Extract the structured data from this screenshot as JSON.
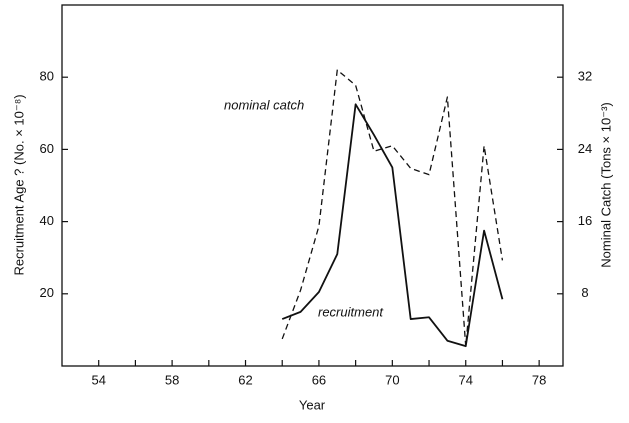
{
  "chart_data": {
    "type": "line",
    "x": [
      64,
      65,
      66,
      67,
      68,
      69,
      70,
      71,
      72,
      73,
      74,
      75,
      76
    ],
    "series": [
      {
        "name": "recruitment",
        "color": "#111111",
        "dash": false,
        "axis": "y",
        "values": [
          13,
          15,
          20.5,
          31,
          72.5,
          64,
          55,
          13,
          13.5,
          7,
          5.5,
          37.5,
          18.5
        ]
      },
      {
        "name": "nominal catch",
        "color": "#111111",
        "dash": true,
        "axis": "y2",
        "values": [
          3,
          8.4,
          15.5,
          32.8,
          31.1,
          23.8,
          24.4,
          21.9,
          21.2,
          29.8,
          2.2,
          24.4,
          11.7
        ]
      }
    ],
    "xlabel": "Year",
    "ylabel": "Recruitment Age ? (No. × 10⁻⁸)",
    "y2label": "Nominal Catch (Tons × 10⁻³)",
    "xlim": [
      52,
      79.3
    ],
    "xticks": [
      54,
      58,
      62,
      66,
      70,
      74,
      78
    ],
    "xminorticks": [
      56,
      60,
      64,
      68,
      72,
      76
    ],
    "ylim": [
      0,
      100
    ],
    "yticks": [
      20,
      40,
      60,
      80
    ],
    "y2lim": [
      0,
      40
    ],
    "y2ticks": [
      8,
      16,
      24,
      32
    ],
    "grid": false
  }
}
